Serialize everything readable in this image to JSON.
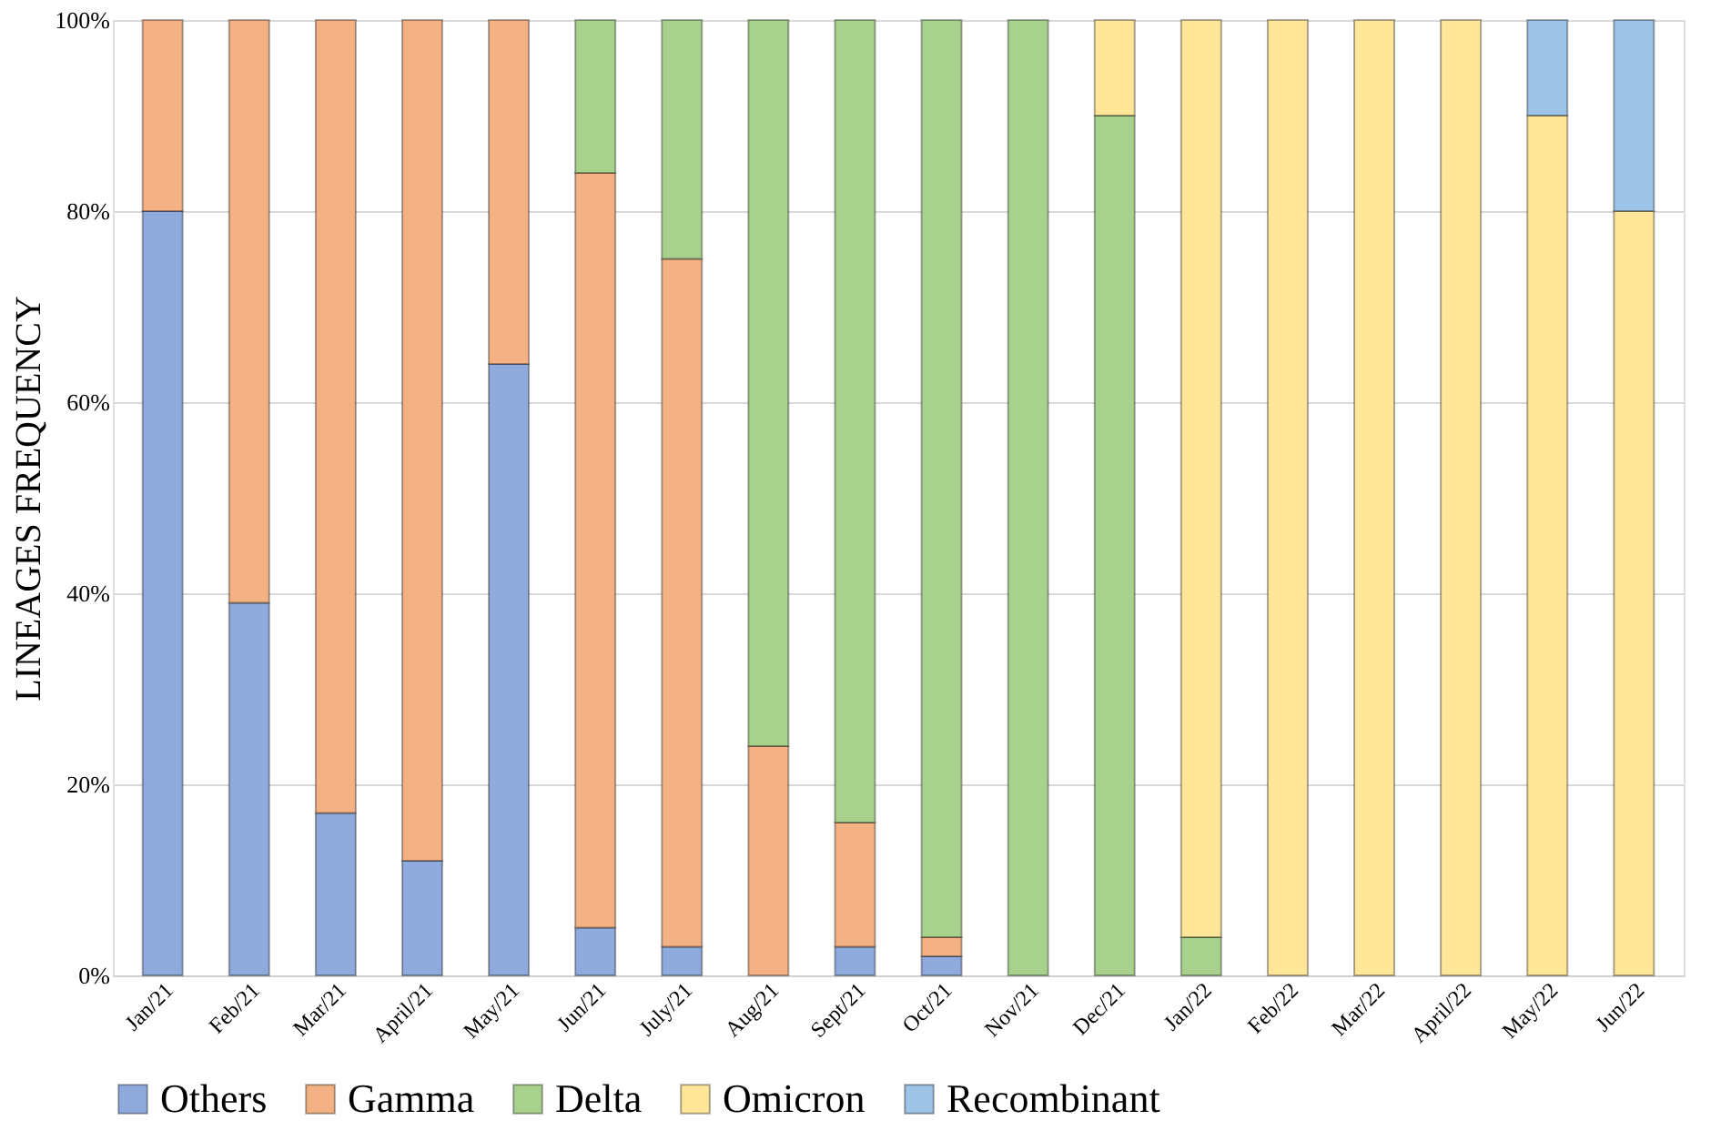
{
  "chart_data": {
    "type": "bar",
    "stacked": true,
    "ylabel": "LINEAGES FREQUENCY",
    "categories": [
      "Jan/21",
      "Feb/21",
      "Mar/21",
      "April/21",
      "May/21",
      "Jun/21",
      "July/21",
      "Aug/21",
      "Sept/21",
      "Oct/21",
      "Nov/21",
      "Dec/21",
      "Jan/22",
      "Feb/22",
      "Mar/22",
      "April/22",
      "May/22",
      "Jun/22"
    ],
    "series": [
      {
        "name": "Others",
        "color": "#8faadc",
        "values": [
          80,
          39,
          17,
          12,
          64,
          5,
          3,
          null,
          3,
          2,
          null,
          null,
          null,
          null,
          null,
          null,
          null,
          null
        ]
      },
      {
        "name": "Gamma",
        "color": "#f4b183",
        "values": [
          20,
          61,
          83,
          88,
          36,
          79,
          72,
          24,
          13,
          2,
          null,
          null,
          null,
          null,
          null,
          null,
          null,
          null
        ]
      },
      {
        "name": "Delta",
        "color": "#a9d18e",
        "values": [
          null,
          null,
          null,
          null,
          null,
          16,
          25,
          76,
          84,
          96,
          100,
          90,
          4,
          null,
          null,
          null,
          null,
          null
        ]
      },
      {
        "name": "Omicron",
        "color": "#ffe699",
        "values": [
          null,
          null,
          null,
          null,
          null,
          null,
          null,
          null,
          null,
          null,
          null,
          10,
          96,
          100,
          100,
          100,
          90,
          80
        ]
      },
      {
        "name": "Recombinant",
        "color": "#9dc3e6",
        "values": [
          null,
          null,
          null,
          null,
          null,
          null,
          null,
          null,
          null,
          null,
          null,
          null,
          null,
          null,
          null,
          null,
          10,
          20
        ]
      }
    ],
    "ylim": [
      0,
      100
    ],
    "yticks": [
      {
        "value": 0,
        "label": "0%"
      },
      {
        "value": 20,
        "label": "20%"
      },
      {
        "value": 40,
        "label": "40%"
      },
      {
        "value": 60,
        "label": "60%"
      },
      {
        "value": 80,
        "label": "80%"
      },
      {
        "value": 100,
        "label": "100%"
      }
    ],
    "grid": "y",
    "legend": "bottom"
  }
}
